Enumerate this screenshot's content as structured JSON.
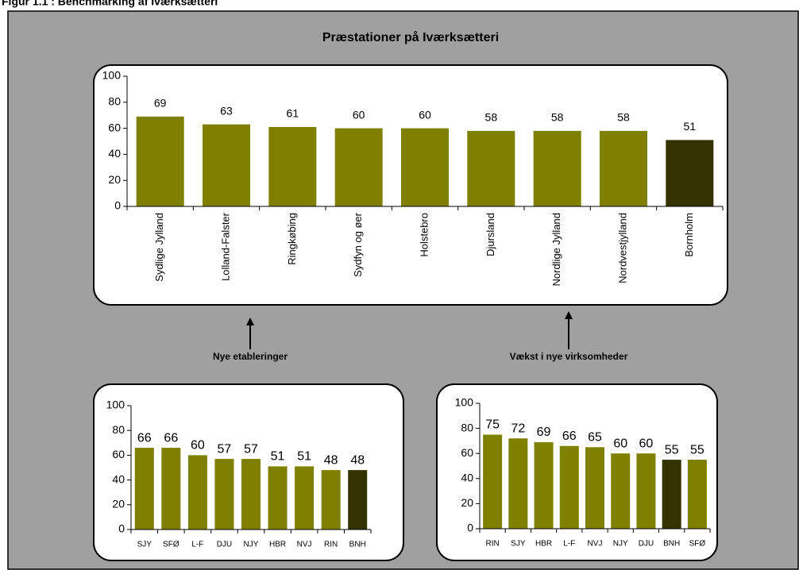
{
  "header": "Figur 1.1 : Benchmarking af Iværksætteri",
  "chart_data": [
    {
      "type": "bar",
      "title": "Præstationer på Iværksætteri",
      "categories": [
        "Sydlige Jylland",
        "Lolland-Falster",
        "Ringkøbing",
        "Sydfyn og øer",
        "Holstebro",
        "Djursland",
        "Nordlige Jylland",
        "Nordvestjylland",
        "Bornholm"
      ],
      "values": [
        69,
        63,
        61,
        60,
        60,
        58,
        58,
        58,
        51
      ],
      "colors": [
        "#808000",
        "#808000",
        "#808000",
        "#808000",
        "#808000",
        "#808000",
        "#808000",
        "#808000",
        "#333300"
      ],
      "ylim": [
        0,
        100
      ],
      "yticks": [
        0,
        20,
        40,
        60,
        80,
        100
      ]
    },
    {
      "type": "bar",
      "title": "Nye etableringer",
      "categories": [
        "SJY",
        "SFØ",
        "L-F",
        "DJU",
        "NJY",
        "HBR",
        "NVJ",
        "RIN",
        "BNH"
      ],
      "values": [
        66,
        66,
        60,
        57,
        57,
        51,
        51,
        48,
        48
      ],
      "colors": [
        "#808000",
        "#808000",
        "#808000",
        "#808000",
        "#808000",
        "#808000",
        "#808000",
        "#808000",
        "#333300"
      ],
      "ylim": [
        0,
        100
      ],
      "yticks": [
        0,
        20,
        40,
        60,
        80,
        100
      ]
    },
    {
      "type": "bar",
      "title": "Vækst i nye virksomheder",
      "categories": [
        "RIN",
        "SJY",
        "HBR",
        "L-F",
        "NVJ",
        "NJY",
        "DJU",
        "BNH",
        "SFØ"
      ],
      "values": [
        75,
        72,
        69,
        66,
        65,
        60,
        60,
        55,
        55
      ],
      "colors": [
        "#808000",
        "#808000",
        "#808000",
        "#808000",
        "#808000",
        "#808000",
        "#808000",
        "#333300",
        "#808000"
      ],
      "ylim": [
        0,
        100
      ],
      "yticks": [
        0,
        20,
        40,
        60,
        80,
        100
      ]
    }
  ]
}
